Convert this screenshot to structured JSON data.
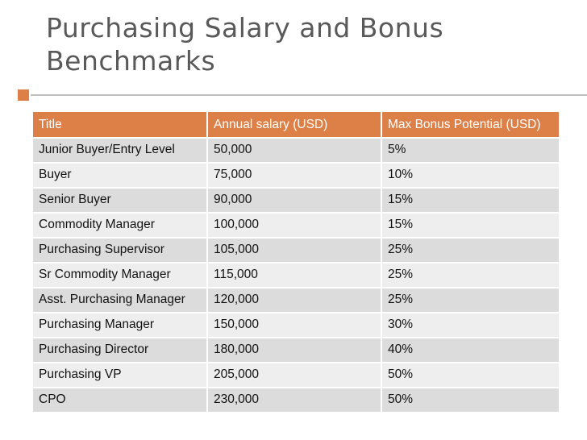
{
  "slide": {
    "title": "Purchasing Salary and Bonus Benchmarks",
    "accent_color": "#dd8047"
  },
  "table": {
    "columns": [
      "Title",
      "Annual salary (USD)",
      "Max Bonus Potential (USD)"
    ],
    "rows": [
      [
        "Junior Buyer/Entry Level",
        "50,000",
        "5%"
      ],
      [
        "Buyer",
        "75,000",
        "10%"
      ],
      [
        "Senior Buyer",
        "90,000",
        "15%"
      ],
      [
        "Commodity Manager",
        "100,000",
        "15%"
      ],
      [
        "Purchasing Supervisor",
        "105,000",
        "25%"
      ],
      [
        "Sr Commodity Manager",
        "115,000",
        "25%"
      ],
      [
        "Asst. Purchasing Manager",
        "120,000",
        "25%"
      ],
      [
        "Purchasing Manager",
        "150,000",
        "30%"
      ],
      [
        "Purchasing Director",
        "180,000",
        "40%"
      ],
      [
        "Purchasing VP",
        "205,000",
        "50%"
      ],
      [
        "CPO",
        "230,000",
        "50%"
      ]
    ],
    "header_color": "#dd8047",
    "row_color_a": "#dcdcdc",
    "row_color_b": "#eeeeee"
  }
}
